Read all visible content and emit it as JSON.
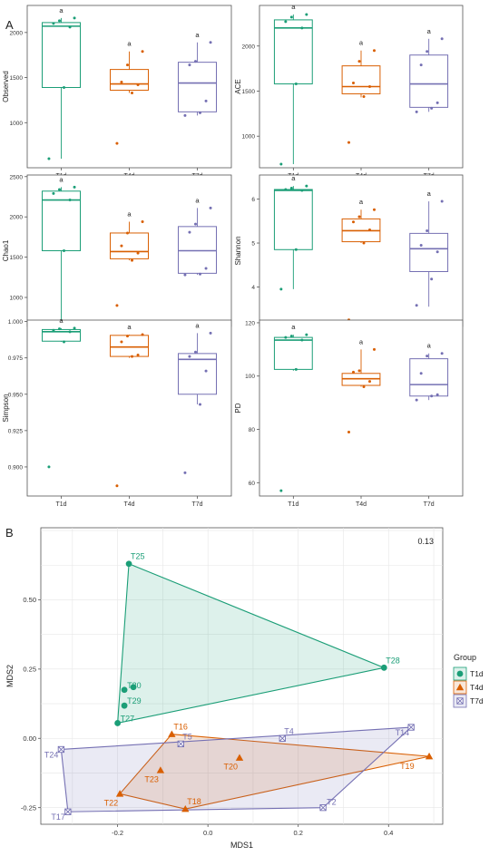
{
  "panel_labels": {
    "a": "A",
    "b": "B"
  },
  "colors": {
    "T1d": "#1b9e77",
    "T4d": "#d95f02",
    "T7d": "#7570b3"
  },
  "chart_data": [
    {
      "type": "box",
      "ylabel": "Observed",
      "categories": [
        "T1d",
        "T4d",
        "T7d"
      ],
      "ylim": [
        500,
        2300
      ],
      "yticks": [
        1000,
        1500,
        2000
      ],
      "boxes": [
        {
          "group": "T1d",
          "min": 600,
          "q1": 1390,
          "median": 2070,
          "q3": 2110,
          "max": 2160,
          "letter": "a",
          "points": [
            600,
            1390,
            2060,
            2100,
            2130,
            2160
          ]
        },
        {
          "group": "T4d",
          "min": 1330,
          "q1": 1360,
          "median": 1430,
          "q3": 1590,
          "max": 1790,
          "letter": "a",
          "points": [
            770,
            1330,
            1420,
            1450,
            1640,
            1790
          ]
        },
        {
          "group": "T7d",
          "min": 1080,
          "q1": 1120,
          "median": 1440,
          "q3": 1670,
          "max": 1890,
          "letter": "a",
          "points": [
            1080,
            1110,
            1240,
            1640,
            1680,
            1890
          ]
        }
      ]
    },
    {
      "type": "box",
      "ylabel": "ACE",
      "categories": [
        "T1d",
        "T4d",
        "T7d"
      ],
      "ylim": [
        650,
        2450
      ],
      "yticks": [
        1000,
        1500,
        2000
      ],
      "boxes": [
        {
          "group": "T1d",
          "min": 690,
          "q1": 1580,
          "median": 2200,
          "q3": 2290,
          "max": 2350,
          "letter": "a",
          "points": [
            690,
            1580,
            2200,
            2270,
            2320,
            2350
          ]
        },
        {
          "group": "T4d",
          "min": 1430,
          "q1": 1470,
          "median": 1550,
          "q3": 1780,
          "max": 1950,
          "letter": "a",
          "points": [
            930,
            1440,
            1550,
            1590,
            1830,
            1950
          ]
        },
        {
          "group": "T7d",
          "min": 1270,
          "q1": 1320,
          "median": 1580,
          "q3": 1900,
          "max": 2080,
          "letter": "a",
          "points": [
            1270,
            1310,
            1370,
            1790,
            1940,
            2080
          ]
        }
      ]
    },
    {
      "type": "box",
      "ylabel": "Chao1",
      "categories": [
        "T1d",
        "T4d",
        "T7d"
      ],
      "ylim": [
        640,
        2520
      ],
      "yticks": [
        1000,
        1500,
        2000,
        2500
      ],
      "boxes": [
        {
          "group": "T1d",
          "min": 680,
          "q1": 1580,
          "median": 2210,
          "q3": 2320,
          "max": 2370,
          "letter": "a",
          "points": [
            680,
            1580,
            2210,
            2290,
            2340,
            2370
          ]
        },
        {
          "group": "T4d",
          "min": 1460,
          "q1": 1480,
          "median": 1570,
          "q3": 1800,
          "max": 1940,
          "letter": "a",
          "points": [
            900,
            1460,
            1550,
            1640,
            1800,
            1940
          ]
        },
        {
          "group": "T7d",
          "min": 1280,
          "q1": 1300,
          "median": 1580,
          "q3": 1880,
          "max": 2110,
          "letter": "a",
          "points": [
            1280,
            1290,
            1360,
            1810,
            1910,
            2110
          ]
        }
      ]
    },
    {
      "type": "box",
      "ylabel": "Shannon",
      "categories": [
        "T1d",
        "T4d",
        "T7d"
      ],
      "ylim": [
        3.1,
        6.55
      ],
      "yticks": [
        4,
        5,
        6
      ],
      "boxes": [
        {
          "group": "T1d",
          "min": 3.95,
          "q1": 4.85,
          "median": 6.2,
          "q3": 6.22,
          "max": 6.3,
          "letter": "a",
          "points": [
            3.95,
            4.85,
            6.2,
            6.22,
            6.25,
            6.3
          ]
        },
        {
          "group": "T4d",
          "min": 5.0,
          "q1": 5.03,
          "median": 5.28,
          "q3": 5.55,
          "max": 5.76,
          "letter": "a",
          "points": [
            3.25,
            5.0,
            5.3,
            5.48,
            5.6,
            5.76
          ]
        },
        {
          "group": "T7d",
          "min": 3.55,
          "q1": 4.35,
          "median": 4.87,
          "q3": 5.22,
          "max": 5.95,
          "letter": "a",
          "points": [
            3.58,
            4.18,
            4.8,
            4.95,
            5.28,
            5.95
          ]
        }
      ]
    },
    {
      "type": "box",
      "ylabel": "Simpson",
      "categories": [
        "T1d",
        "T4d",
        "T7d"
      ],
      "ylim": [
        0.88,
        1.001
      ],
      "yticks": [
        0.9,
        0.925,
        0.95,
        0.975,
        1.0
      ],
      "yticklabels": [
        "0.900",
        "0.925",
        "0.950",
        "0.975",
        "1.000"
      ],
      "boxes": [
        {
          "group": "T1d",
          "min": 0.986,
          "q1": 0.9865,
          "median": 0.993,
          "q3": 0.9945,
          "max": 0.9955,
          "letter": "a",
          "points": [
            0.9,
            0.986,
            0.993,
            0.994,
            0.995,
            0.9955
          ]
        },
        {
          "group": "T4d",
          "min": 0.975,
          "q1": 0.976,
          "median": 0.9825,
          "q3": 0.9905,
          "max": 0.991,
          "letter": "a",
          "points": [
            0.887,
            0.976,
            0.977,
            0.986,
            0.99,
            0.991
          ]
        },
        {
          "group": "T7d",
          "min": 0.943,
          "q1": 0.95,
          "median": 0.974,
          "q3": 0.978,
          "max": 0.992,
          "letter": "a",
          "points": [
            0.896,
            0.943,
            0.966,
            0.976,
            0.979,
            0.992
          ]
        }
      ]
    },
    {
      "type": "box",
      "ylabel": "PD",
      "categories": [
        "T1d",
        "T4d",
        "T7d"
      ],
      "ylim": [
        55,
        121
      ],
      "yticks": [
        60,
        80,
        100,
        120
      ],
      "boxes": [
        {
          "group": "T1d",
          "min": 102,
          "q1": 102.5,
          "median": 113.5,
          "q3": 114.5,
          "max": 115.5,
          "letter": "a",
          "points": [
            57,
            102.5,
            113.5,
            114.5,
            115,
            115.5
          ]
        },
        {
          "group": "T4d",
          "min": 96,
          "q1": 96.5,
          "median": 99,
          "q3": 101,
          "max": 110,
          "letter": "a",
          "points": [
            79,
            96,
            98,
            101.5,
            102,
            110
          ]
        },
        {
          "group": "T7d",
          "min": 91,
          "q1": 92.5,
          "median": 96.8,
          "q3": 106.5,
          "max": 108.5,
          "letter": "a",
          "points": [
            91,
            92.5,
            93,
            101,
            107.5,
            108.5
          ]
        }
      ]
    },
    {
      "type": "scatter",
      "xlabel": "MDS1",
      "ylabel": "MDS2",
      "xlim": [
        -0.37,
        0.52
      ],
      "ylim": [
        -0.31,
        0.76
      ],
      "xticks": [
        -0.2,
        0.0,
        0.2,
        0.4
      ],
      "xticklabels": [
        "-0.2",
        "0.0",
        "0.2",
        "0.4"
      ],
      "yticks": [
        -0.25,
        0.0,
        0.25,
        0.5
      ],
      "yticklabels": [
        "-0.25",
        "0.00",
        "0.25",
        "0.50"
      ],
      "stress_label": "0.13",
      "legend": {
        "title": "Group",
        "position": "right"
      },
      "groups": [
        {
          "name": "T1d",
          "shape": "circle",
          "hull": [
            "T25",
            "T28",
            "T27"
          ],
          "points": [
            {
              "label": "T25",
              "x": -0.175,
              "y": 0.63
            },
            {
              "label": "T28",
              "x": 0.39,
              "y": 0.255
            },
            {
              "label": "",
              "x": -0.165,
              "y": 0.185
            },
            {
              "label": "T30",
              "x": -0.185,
              "y": 0.175
            },
            {
              "label": "T29",
              "x": -0.185,
              "y": 0.118
            },
            {
              "label": "T27",
              "x": -0.2,
              "y": 0.055
            }
          ]
        },
        {
          "name": "T4d",
          "shape": "triangle",
          "hull": [
            "T16",
            "T19",
            "T18",
            "T22"
          ],
          "points": [
            {
              "label": "T16",
              "x": -0.08,
              "y": 0.015
            },
            {
              "label": "T19",
              "x": 0.49,
              "y": -0.065
            },
            {
              "label": "T20",
              "x": 0.07,
              "y": -0.07
            },
            {
              "label": "T23",
              "x": -0.105,
              "y": -0.115
            },
            {
              "label": "T22",
              "x": -0.195,
              "y": -0.2
            },
            {
              "label": "T18",
              "x": -0.05,
              "y": -0.255
            }
          ]
        },
        {
          "name": "T7d",
          "shape": "square-x",
          "hull": [
            "T24",
            "T14",
            "T2",
            "T17"
          ],
          "points": [
            {
              "label": "T24",
              "x": -0.325,
              "y": -0.04
            },
            {
              "label": "T14",
              "x": 0.45,
              "y": 0.04
            },
            {
              "label": "T4",
              "x": 0.165,
              "y": 0.0
            },
            {
              "label": "T5",
              "x": -0.06,
              "y": -0.02
            },
            {
              "label": "T2",
              "x": 0.255,
              "y": -0.25
            },
            {
              "label": "T17",
              "x": -0.31,
              "y": -0.265
            }
          ]
        }
      ]
    }
  ]
}
